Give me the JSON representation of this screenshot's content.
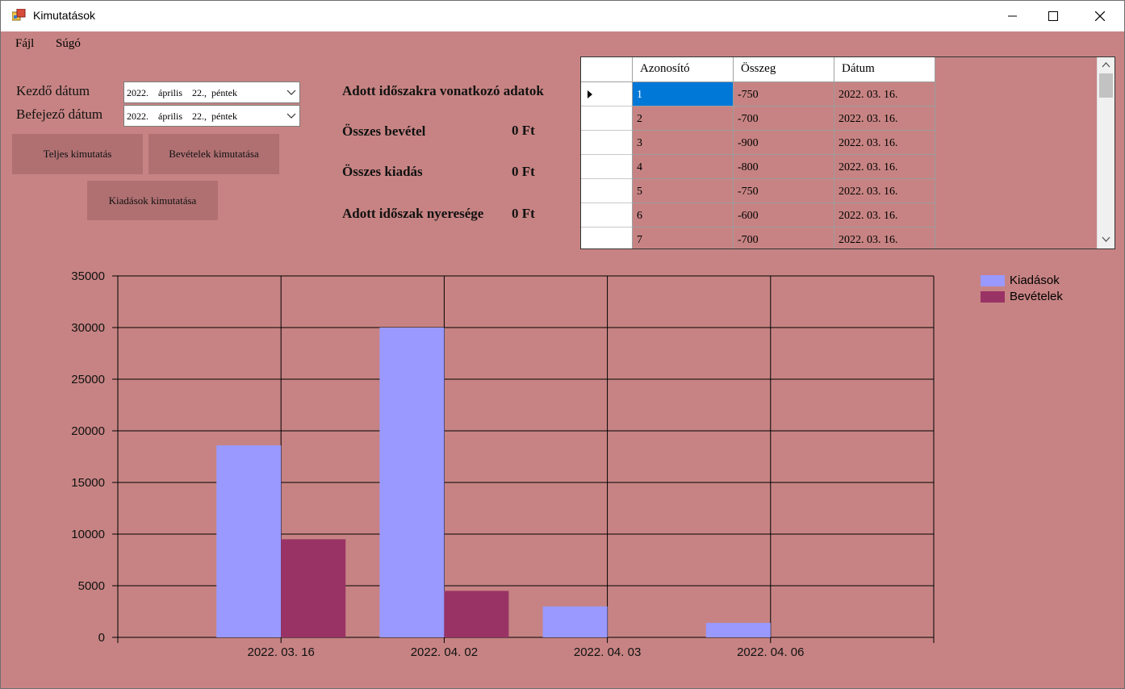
{
  "window": {
    "title": "Kimutatások"
  },
  "menu": {
    "items": [
      "Fájl",
      "Súgó"
    ]
  },
  "filters": {
    "start_label": "Kezdő dátum",
    "end_label": "Befejező dátum",
    "start_value": "2022.    április    22.,  péntek",
    "end_value": "2022.    április    22.,  péntek"
  },
  "buttons": {
    "full": "Teljes kimutatás",
    "income": "Bevételek kimutatása",
    "expenses": "Kiadások kimutatása"
  },
  "summary": {
    "heading": "Adott időszakra vonatkozó adatok",
    "income_label": "Összes bevétel",
    "income_value": "0 Ft",
    "expense_label": "Összes kiadás",
    "expense_value": "0 Ft",
    "profit_label": "Adott időszak nyeresége",
    "profit_value": "0 Ft"
  },
  "table": {
    "columns": [
      "Azonosító",
      "Összeg",
      "Dátum"
    ],
    "rows": [
      [
        "1",
        "-750",
        "2022. 03. 16."
      ],
      [
        "2",
        "-700",
        "2022. 03. 16."
      ],
      [
        "3",
        "-900",
        "2022. 03. 16."
      ],
      [
        "4",
        "-800",
        "2022. 03. 16."
      ],
      [
        "5",
        "-750",
        "2022. 03. 16."
      ],
      [
        "6",
        "-600",
        "2022. 03. 16."
      ],
      [
        "7",
        "-700",
        "2022. 03. 16."
      ]
    ],
    "selected_row": 0
  },
  "chart_data": {
    "type": "bar",
    "categories": [
      "2022. 03. 16",
      "2022. 04. 02",
      "2022. 04. 03",
      "2022. 04. 06"
    ],
    "series": [
      {
        "name": "Kiadások",
        "values": [
          18600,
          30000,
          3000,
          1400
        ],
        "color": "#9999ff"
      },
      {
        "name": "Bevételek",
        "values": [
          9500,
          4500,
          0,
          0
        ],
        "color": "#993366"
      }
    ],
    "y_ticks": [
      0,
      5000,
      10000,
      15000,
      20000,
      25000,
      30000,
      35000
    ],
    "ylim": [
      0,
      35000
    ],
    "grid": true,
    "legend_position": "top-right"
  }
}
